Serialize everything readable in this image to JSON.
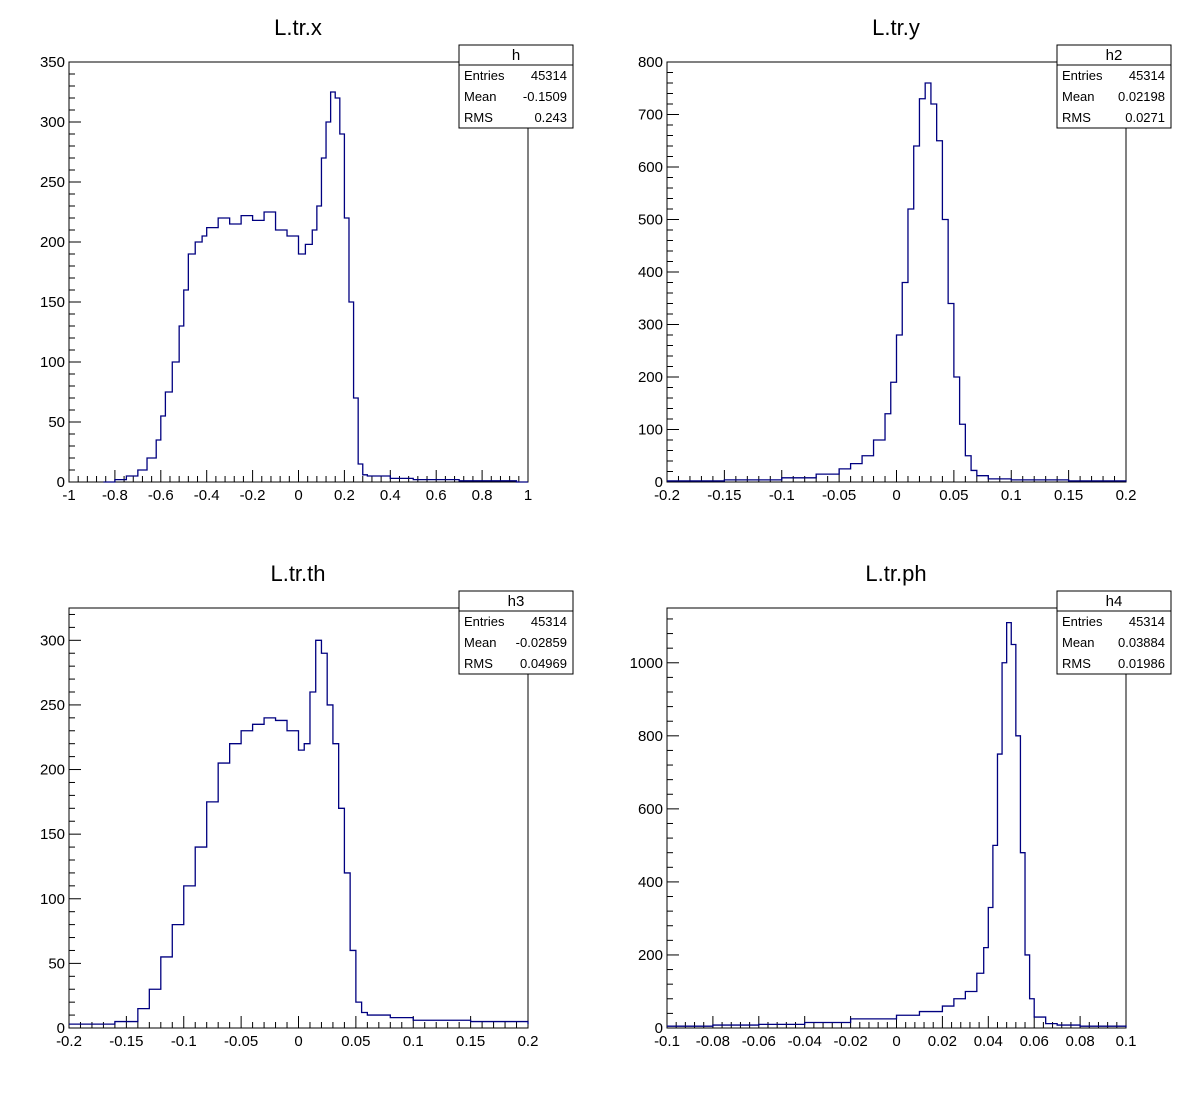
{
  "line_color": "#000080",
  "frame_color": "#000000",
  "background_color": "#ffffff",
  "chart_data": [
    {
      "type": "histogram",
      "title": "L.tr.x",
      "stats": {
        "name": "h",
        "entries": "45314",
        "mean": "-0.1509",
        "rms": "0.243"
      },
      "xlim": [
        -1,
        1
      ],
      "ylim": [
        0,
        350
      ],
      "xticks": [
        -1,
        -0.8,
        -0.6,
        -0.4,
        -0.2,
        0,
        0.2,
        0.4,
        0.6,
        0.8,
        1
      ],
      "xtick_labels": [
        "-1",
        "-0.8",
        "-0.6",
        "-0.4",
        "-0.2",
        "0",
        "0.2",
        "0.4",
        "0.6",
        "0.8",
        "1"
      ],
      "yticks": [
        0,
        50,
        100,
        150,
        200,
        250,
        300,
        350
      ],
      "ytick_labels": [
        "0",
        "50",
        "100",
        "150",
        "200",
        "250",
        "300",
        "350"
      ],
      "x": [
        -0.85,
        -0.8,
        -0.75,
        -0.7,
        -0.66,
        -0.62,
        -0.6,
        -0.58,
        -0.55,
        -0.52,
        -0.5,
        -0.48,
        -0.45,
        -0.42,
        -0.4,
        -0.35,
        -0.3,
        -0.25,
        -0.2,
        -0.15,
        -0.1,
        -0.05,
        0,
        0.03,
        0.06,
        0.08,
        0.1,
        0.12,
        0.14,
        0.16,
        0.18,
        0.2,
        0.22,
        0.24,
        0.26,
        0.28,
        0.3,
        0.4,
        0.5,
        0.6,
        0.7,
        0.8,
        0.9,
        0.95
      ],
      "y": [
        0,
        2,
        5,
        10,
        20,
        35,
        55,
        75,
        100,
        130,
        160,
        190,
        200,
        205,
        212,
        220,
        215,
        222,
        218,
        225,
        210,
        205,
        190,
        198,
        210,
        230,
        270,
        300,
        325,
        320,
        290,
        220,
        150,
        70,
        15,
        6,
        5,
        3,
        2,
        2,
        1,
        1,
        1,
        0
      ]
    },
    {
      "type": "histogram",
      "title": "L.tr.y",
      "stats": {
        "name": "h2",
        "entries": "45314",
        "mean": "0.02198",
        "rms": "0.0271"
      },
      "xlim": [
        -0.2,
        0.2
      ],
      "ylim": [
        0,
        800
      ],
      "xticks": [
        -0.2,
        -0.15,
        -0.1,
        -0.05,
        0,
        0.05,
        0.1,
        0.15,
        0.2
      ],
      "xtick_labels": [
        "-0.2",
        "-0.15",
        "-0.1",
        "-0.05",
        "0",
        "0.05",
        "0.1",
        "0.15",
        "0.2"
      ],
      "yticks": [
        0,
        100,
        200,
        300,
        400,
        500,
        600,
        700,
        800
      ],
      "ytick_labels": [
        "0",
        "100",
        "200",
        "300",
        "400",
        "500",
        "600",
        "700",
        "800"
      ],
      "x": [
        -0.2,
        -0.15,
        -0.1,
        -0.07,
        -0.05,
        -0.04,
        -0.03,
        -0.02,
        -0.01,
        -0.005,
        0,
        0.005,
        0.01,
        0.015,
        0.02,
        0.025,
        0.03,
        0.035,
        0.04,
        0.045,
        0.05,
        0.055,
        0.06,
        0.065,
        0.07,
        0.08,
        0.1,
        0.15,
        0.2
      ],
      "y": [
        2,
        4,
        8,
        15,
        25,
        35,
        50,
        80,
        130,
        190,
        280,
        380,
        520,
        640,
        730,
        760,
        720,
        650,
        500,
        340,
        200,
        110,
        50,
        22,
        12,
        6,
        4,
        2,
        1
      ]
    },
    {
      "type": "histogram",
      "title": "L.tr.th",
      "stats": {
        "name": "h3",
        "entries": "45314",
        "mean": "-0.02859",
        "rms": "0.04969"
      },
      "xlim": [
        -0.2,
        0.2
      ],
      "ylim": [
        0,
        325
      ],
      "xticks": [
        -0.2,
        -0.15,
        -0.1,
        -0.05,
        0,
        0.05,
        0.1,
        0.15,
        0.2
      ],
      "xtick_labels": [
        "-0.2",
        "-0.15",
        "-0.1",
        "-0.05",
        "0",
        "0.05",
        "0.1",
        "0.15",
        "0.2"
      ],
      "yticks": [
        0,
        50,
        100,
        150,
        200,
        250,
        300
      ],
      "ytick_labels": [
        "0",
        "50",
        "100",
        "150",
        "200",
        "250",
        "300"
      ],
      "x": [
        -0.2,
        -0.16,
        -0.14,
        -0.13,
        -0.12,
        -0.11,
        -0.1,
        -0.09,
        -0.08,
        -0.07,
        -0.06,
        -0.05,
        -0.04,
        -0.03,
        -0.02,
        -0.01,
        0,
        0.005,
        0.01,
        0.015,
        0.02,
        0.025,
        0.03,
        0.035,
        0.04,
        0.045,
        0.05,
        0.055,
        0.06,
        0.08,
        0.1,
        0.15,
        0.2
      ],
      "y": [
        3,
        5,
        15,
        30,
        55,
        80,
        110,
        140,
        175,
        205,
        220,
        230,
        235,
        240,
        238,
        230,
        215,
        220,
        260,
        300,
        290,
        250,
        220,
        170,
        120,
        60,
        20,
        12,
        10,
        8,
        6,
        5,
        3
      ]
    },
    {
      "type": "histogram",
      "title": "L.tr.ph",
      "stats": {
        "name": "h4",
        "entries": "45314",
        "mean": "0.03884",
        "rms": "0.01986"
      },
      "xlim": [
        -0.1,
        0.1
      ],
      "ylim": [
        0,
        1150
      ],
      "xticks": [
        -0.1,
        -0.08,
        -0.06,
        -0.04,
        -0.02,
        0,
        0.02,
        0.04,
        0.06,
        0.08,
        0.1
      ],
      "xtick_labels": [
        "-0.1",
        "-0.08",
        "-0.06",
        "-0.04",
        "-0.02",
        "0",
        "0.02",
        "0.04",
        "0.06",
        "0.08",
        "0.1"
      ],
      "yticks": [
        0,
        200,
        400,
        600,
        800,
        1000
      ],
      "ytick_labels": [
        "0",
        "200",
        "400",
        "600",
        "800",
        "1000"
      ],
      "x": [
        -0.1,
        -0.08,
        -0.06,
        -0.04,
        -0.02,
        0,
        0.01,
        0.02,
        0.025,
        0.03,
        0.035,
        0.038,
        0.04,
        0.042,
        0.044,
        0.046,
        0.048,
        0.05,
        0.052,
        0.054,
        0.056,
        0.058,
        0.06,
        0.065,
        0.07,
        0.08,
        0.1
      ],
      "y": [
        5,
        8,
        10,
        15,
        25,
        35,
        45,
        60,
        80,
        100,
        150,
        220,
        330,
        500,
        750,
        1000,
        1110,
        1050,
        800,
        480,
        200,
        80,
        30,
        12,
        8,
        5,
        2
      ]
    }
  ]
}
